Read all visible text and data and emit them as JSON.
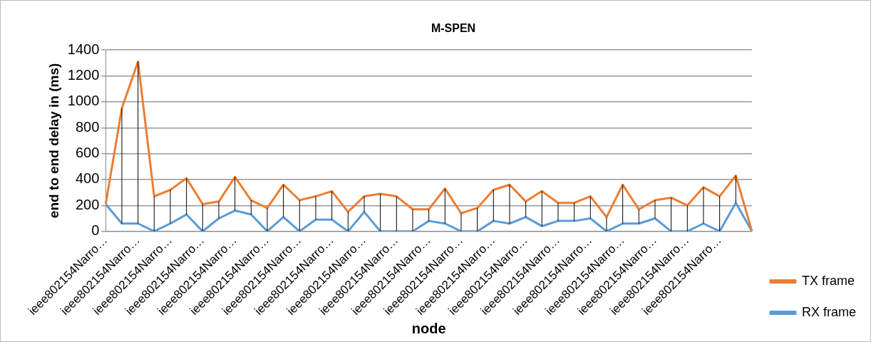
{
  "chart_data": {
    "type": "line",
    "title": "M-SPEN",
    "xlabel": "node",
    "ylabel": "end to end delay in (ms)",
    "categories": [
      "ieee802154Narro…",
      null,
      "ieee802154Narro…",
      null,
      "ieee802154Narro…",
      null,
      "ieee802154Narro…",
      null,
      "ieee802154Narro…",
      null,
      "ieee802154Narro…",
      null,
      "ieee802154Narro…",
      null,
      "ieee802154Narro…",
      null,
      "ieee802154Narro…",
      null,
      "ieee802154Narro…",
      null,
      "ieee802154Narro…",
      null,
      "ieee802154Narro…",
      null,
      "ieee802154Narro…",
      null,
      "ieee802154Narro…",
      null,
      "ieee802154Narro…",
      null,
      "ieee802154Narro…",
      null,
      "ieee802154Narro…",
      null,
      "ieee802154Narro…",
      null,
      "ieee802154Narro…",
      null,
      "ieee802154Narro…",
      null,
      null
    ],
    "series": [
      {
        "name": "TX frame",
        "color": "#ed7d31",
        "values": [
          210,
          950,
          1310,
          270,
          320,
          410,
          210,
          230,
          420,
          240,
          180,
          360,
          240,
          270,
          310,
          150,
          270,
          290,
          270,
          170,
          170,
          330,
          140,
          180,
          320,
          360,
          230,
          310,
          220,
          220,
          270,
          110,
          360,
          170,
          240,
          260,
          200,
          340,
          270,
          430,
          0
        ],
        "errors": [
          null,
          [
            60,
            950
          ],
          [
            60,
            1310
          ],
          [
            0,
            270
          ],
          [
            60,
            320
          ],
          [
            130,
            410
          ],
          [
            0,
            210
          ],
          [
            100,
            230
          ],
          [
            160,
            420
          ],
          [
            130,
            240
          ],
          [
            0,
            180
          ],
          [
            110,
            360
          ],
          [
            0,
            240
          ],
          [
            90,
            270
          ],
          [
            90,
            310
          ],
          [
            0,
            150
          ],
          [
            150,
            270
          ],
          [
            0,
            290
          ],
          [
            0,
            270
          ],
          [
            0,
            170
          ],
          [
            80,
            170
          ],
          [
            60,
            330
          ],
          [
            0,
            140
          ],
          [
            0,
            180
          ],
          [
            80,
            320
          ],
          [
            60,
            360
          ],
          [
            110,
            230
          ],
          [
            40,
            310
          ],
          [
            80,
            220
          ],
          [
            80,
            220
          ],
          [
            100,
            270
          ],
          [
            0,
            110
          ],
          [
            60,
            360
          ],
          [
            60,
            170
          ],
          [
            100,
            240
          ],
          [
            0,
            260
          ],
          [
            0,
            200
          ],
          [
            60,
            340
          ],
          [
            0,
            270
          ],
          [
            220,
            430
          ],
          null
        ]
      },
      {
        "name": "RX frame",
        "color": "#5b9bd5",
        "values": [
          210,
          60,
          60,
          0,
          60,
          130,
          0,
          100,
          160,
          130,
          0,
          110,
          0,
          90,
          90,
          0,
          150,
          0,
          0,
          0,
          80,
          60,
          0,
          0,
          80,
          60,
          110,
          40,
          80,
          80,
          100,
          0,
          60,
          60,
          100,
          0,
          0,
          60,
          0,
          220,
          0
        ]
      }
    ],
    "ylim": [
      0,
      1400
    ],
    "yticks": [
      0,
      200,
      400,
      600,
      800,
      1000,
      1200,
      1400
    ],
    "grid": "y",
    "legend": "right",
    "marker": "none",
    "line_style": "solid"
  }
}
